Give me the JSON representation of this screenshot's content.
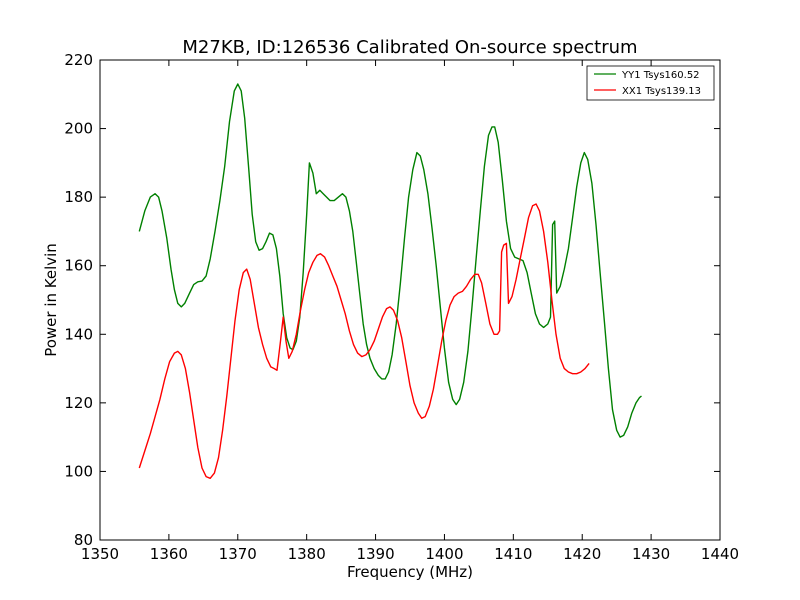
{
  "chart_data": {
    "type": "line",
    "title": "M27KB, ID:126536 Calibrated On-source spectrum",
    "xlabel": "Frequency (MHz)",
    "ylabel": "Power in Kelvin",
    "xlim": [
      1350,
      1440
    ],
    "ylim": [
      80,
      220
    ],
    "xticks": [
      1350,
      1360,
      1370,
      1380,
      1390,
      1400,
      1410,
      1420,
      1430,
      1440
    ],
    "yticks": [
      80,
      100,
      120,
      140,
      160,
      180,
      200,
      220
    ],
    "grid": false,
    "legend_position": "top-right",
    "series": [
      {
        "name": "YY1 Tsys160.52",
        "color": "#008000",
        "points": [
          [
            1355.7,
            170
          ],
          [
            1356.5,
            176
          ],
          [
            1357.3,
            180
          ],
          [
            1358.0,
            181
          ],
          [
            1358.5,
            180
          ],
          [
            1359.0,
            176
          ],
          [
            1359.7,
            168
          ],
          [
            1360.3,
            159
          ],
          [
            1360.8,
            153
          ],
          [
            1361.3,
            149
          ],
          [
            1361.8,
            148
          ],
          [
            1362.3,
            149
          ],
          [
            1363.0,
            152
          ],
          [
            1363.6,
            154.5
          ],
          [
            1364.2,
            155.3
          ],
          [
            1364.8,
            155.5
          ],
          [
            1365.4,
            157
          ],
          [
            1366.0,
            162
          ],
          [
            1366.7,
            170
          ],
          [
            1367.4,
            179
          ],
          [
            1368.1,
            189
          ],
          [
            1368.8,
            202
          ],
          [
            1369.5,
            211
          ],
          [
            1370.0,
            213
          ],
          [
            1370.5,
            211
          ],
          [
            1371.0,
            203
          ],
          [
            1371.6,
            188
          ],
          [
            1372.1,
            175
          ],
          [
            1372.6,
            167
          ],
          [
            1373.1,
            164.5
          ],
          [
            1373.6,
            165
          ],
          [
            1374.1,
            167
          ],
          [
            1374.6,
            169.5
          ],
          [
            1375.1,
            169
          ],
          [
            1375.6,
            165
          ],
          [
            1376.1,
            157
          ],
          [
            1376.6,
            146
          ],
          [
            1377.1,
            139
          ],
          [
            1377.6,
            136
          ],
          [
            1378.0,
            135.5
          ],
          [
            1378.5,
            138
          ],
          [
            1379.0,
            145
          ],
          [
            1379.5,
            158
          ],
          [
            1380.0,
            175
          ],
          [
            1380.4,
            190
          ],
          [
            1380.9,
            187
          ],
          [
            1381.4,
            181
          ],
          [
            1381.9,
            182
          ],
          [
            1382.4,
            181
          ],
          [
            1382.9,
            180
          ],
          [
            1383.4,
            179
          ],
          [
            1384.0,
            179
          ],
          [
            1384.6,
            180
          ],
          [
            1385.2,
            181
          ],
          [
            1385.7,
            180
          ],
          [
            1386.2,
            176
          ],
          [
            1386.7,
            170
          ],
          [
            1387.2,
            161
          ],
          [
            1387.7,
            152
          ],
          [
            1388.2,
            143
          ],
          [
            1388.7,
            137
          ],
          [
            1389.2,
            133
          ],
          [
            1389.8,
            130
          ],
          [
            1390.4,
            128
          ],
          [
            1390.9,
            127
          ],
          [
            1391.4,
            127
          ],
          [
            1391.9,
            129
          ],
          [
            1392.4,
            134
          ],
          [
            1393.0,
            143
          ],
          [
            1393.6,
            155
          ],
          [
            1394.2,
            168
          ],
          [
            1394.8,
            180
          ],
          [
            1395.4,
            188
          ],
          [
            1396.0,
            193
          ],
          [
            1396.5,
            192
          ],
          [
            1397.0,
            188
          ],
          [
            1397.6,
            181
          ],
          [
            1398.2,
            171
          ],
          [
            1398.8,
            160
          ],
          [
            1399.4,
            148
          ],
          [
            1400.0,
            136
          ],
          [
            1400.6,
            126
          ],
          [
            1401.2,
            121
          ],
          [
            1401.7,
            119.5
          ],
          [
            1402.2,
            121
          ],
          [
            1402.8,
            126
          ],
          [
            1403.4,
            135
          ],
          [
            1404.0,
            148
          ],
          [
            1404.6,
            162
          ],
          [
            1405.2,
            176
          ],
          [
            1405.8,
            189
          ],
          [
            1406.4,
            198
          ],
          [
            1406.9,
            200.5
          ],
          [
            1407.3,
            200.5
          ],
          [
            1407.8,
            196
          ],
          [
            1408.4,
            185
          ],
          [
            1409.0,
            173
          ],
          [
            1409.6,
            165
          ],
          [
            1410.2,
            162.5
          ],
          [
            1410.8,
            162
          ],
          [
            1411.4,
            161.5
          ],
          [
            1412.0,
            158
          ],
          [
            1412.6,
            152
          ],
          [
            1413.2,
            146
          ],
          [
            1413.8,
            143
          ],
          [
            1414.4,
            142
          ],
          [
            1415.0,
            143
          ],
          [
            1415.4,
            145
          ],
          [
            1415.7,
            172
          ],
          [
            1416.0,
            173
          ],
          [
            1416.3,
            152
          ],
          [
            1416.8,
            154
          ],
          [
            1417.4,
            159
          ],
          [
            1418.0,
            165
          ],
          [
            1418.6,
            174
          ],
          [
            1419.2,
            183
          ],
          [
            1419.8,
            190
          ],
          [
            1420.3,
            193
          ],
          [
            1420.8,
            191
          ],
          [
            1421.4,
            184
          ],
          [
            1422.0,
            172
          ],
          [
            1422.6,
            158
          ],
          [
            1423.2,
            144
          ],
          [
            1423.8,
            130
          ],
          [
            1424.4,
            118
          ],
          [
            1425.0,
            112
          ],
          [
            1425.5,
            110
          ],
          [
            1426.0,
            110.5
          ],
          [
            1426.6,
            113
          ],
          [
            1427.2,
            117
          ],
          [
            1427.8,
            120
          ],
          [
            1428.3,
            121.5
          ],
          [
            1428.6,
            122
          ]
        ]
      },
      {
        "name": "XX1 Tsys139.13",
        "color": "#ff0000",
        "points": [
          [
            1355.7,
            101
          ],
          [
            1356.5,
            106
          ],
          [
            1357.3,
            111
          ],
          [
            1358.0,
            116
          ],
          [
            1358.7,
            121
          ],
          [
            1359.4,
            127
          ],
          [
            1360.1,
            132
          ],
          [
            1360.8,
            134.5
          ],
          [
            1361.3,
            135
          ],
          [
            1361.8,
            134
          ],
          [
            1362.4,
            130
          ],
          [
            1363.0,
            123
          ],
          [
            1363.6,
            115
          ],
          [
            1364.2,
            107
          ],
          [
            1364.8,
            101
          ],
          [
            1365.4,
            98.5
          ],
          [
            1366.0,
            98
          ],
          [
            1366.6,
            99.5
          ],
          [
            1367.2,
            104
          ],
          [
            1367.8,
            112
          ],
          [
            1368.4,
            122
          ],
          [
            1369.0,
            133
          ],
          [
            1369.6,
            144
          ],
          [
            1370.2,
            153
          ],
          [
            1370.8,
            158
          ],
          [
            1371.3,
            159
          ],
          [
            1371.8,
            156
          ],
          [
            1372.4,
            149
          ],
          [
            1373.0,
            142
          ],
          [
            1373.6,
            137
          ],
          [
            1374.2,
            133
          ],
          [
            1374.8,
            130.5
          ],
          [
            1375.3,
            130
          ],
          [
            1375.7,
            129.5
          ],
          [
            1376.2,
            138
          ],
          [
            1376.6,
            145
          ],
          [
            1377.0,
            138
          ],
          [
            1377.4,
            133
          ],
          [
            1377.9,
            135
          ],
          [
            1378.5,
            140
          ],
          [
            1379.1,
            147
          ],
          [
            1379.7,
            153
          ],
          [
            1380.3,
            158
          ],
          [
            1380.9,
            161
          ],
          [
            1381.5,
            163
          ],
          [
            1382.0,
            163.5
          ],
          [
            1382.6,
            162.5
          ],
          [
            1383.2,
            160
          ],
          [
            1383.8,
            157
          ],
          [
            1384.4,
            154
          ],
          [
            1385.0,
            150
          ],
          [
            1385.6,
            146
          ],
          [
            1386.2,
            141
          ],
          [
            1386.8,
            137
          ],
          [
            1387.4,
            134.5
          ],
          [
            1388.0,
            133.5
          ],
          [
            1388.6,
            134
          ],
          [
            1389.2,
            135.5
          ],
          [
            1389.8,
            138
          ],
          [
            1390.4,
            141.5
          ],
          [
            1391.0,
            145
          ],
          [
            1391.6,
            147.5
          ],
          [
            1392.1,
            148
          ],
          [
            1392.6,
            147
          ],
          [
            1393.2,
            144
          ],
          [
            1393.8,
            139
          ],
          [
            1394.4,
            132
          ],
          [
            1395.0,
            125
          ],
          [
            1395.6,
            120
          ],
          [
            1396.2,
            117
          ],
          [
            1396.7,
            115.5
          ],
          [
            1397.2,
            116
          ],
          [
            1397.8,
            119
          ],
          [
            1398.4,
            124
          ],
          [
            1399.0,
            131
          ],
          [
            1399.6,
            138
          ],
          [
            1400.2,
            144
          ],
          [
            1400.8,
            148.5
          ],
          [
            1401.4,
            151
          ],
          [
            1402.0,
            152
          ],
          [
            1402.6,
            152.5
          ],
          [
            1403.2,
            154
          ],
          [
            1403.8,
            156
          ],
          [
            1404.4,
            157.5
          ],
          [
            1404.9,
            157.5
          ],
          [
            1405.4,
            155
          ],
          [
            1406.0,
            149
          ],
          [
            1406.6,
            143
          ],
          [
            1407.2,
            140
          ],
          [
            1407.7,
            140
          ],
          [
            1408.0,
            141
          ],
          [
            1408.3,
            164
          ],
          [
            1408.6,
            166
          ],
          [
            1409.0,
            166.5
          ],
          [
            1409.3,
            149
          ],
          [
            1409.8,
            151
          ],
          [
            1410.4,
            156
          ],
          [
            1411.0,
            162
          ],
          [
            1411.6,
            168
          ],
          [
            1412.2,
            174
          ],
          [
            1412.8,
            177.5
          ],
          [
            1413.3,
            178
          ],
          [
            1413.8,
            176
          ],
          [
            1414.4,
            170
          ],
          [
            1415.0,
            161
          ],
          [
            1415.6,
            150
          ],
          [
            1416.2,
            140
          ],
          [
            1416.8,
            133
          ],
          [
            1417.4,
            130
          ],
          [
            1418.0,
            129
          ],
          [
            1418.6,
            128.5
          ],
          [
            1419.2,
            128.5
          ],
          [
            1419.8,
            129
          ],
          [
            1420.4,
            130
          ],
          [
            1421.0,
            131.5
          ]
        ]
      }
    ]
  }
}
